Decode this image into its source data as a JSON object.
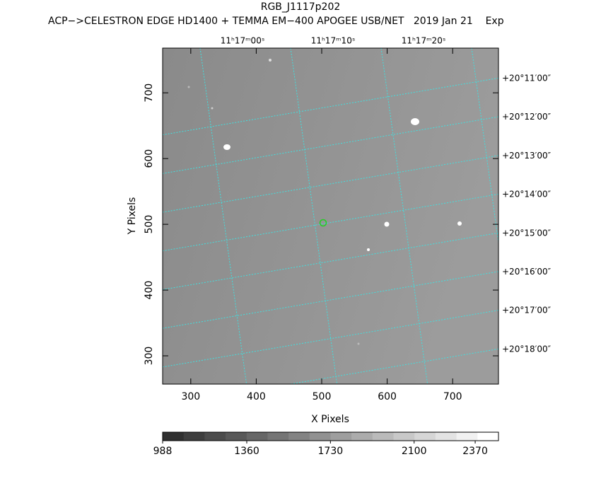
{
  "chart_data": {
    "type": "image",
    "title": "RGB_J1117p202",
    "subtitle": "ACP−>CELESTRON EDGE HD1400 + TEMMA EM−400 APOGEE USB/NET   2019 Jan 21    Exp",
    "xlabel": "X Pixels",
    "ylabel": "Y Pixels",
    "xlim": [
      257,
      770
    ],
    "ylim": [
      257,
      768
    ],
    "xticks": [
      300,
      400,
      500,
      600,
      700
    ],
    "yticks": [
      300,
      400,
      500,
      600,
      700
    ],
    "ra_labels": [
      "11ʰ17ᵐ00ˢ",
      "11ʰ17ᵐ10ˢ",
      "11ʰ17ᵐ20ˢ"
    ],
    "dec_labels": [
      "+20°11′00″",
      "+20°12′00″",
      "+20°13′00″",
      "+20°14′00″",
      "+20°15′00″",
      "+20°16′00″",
      "+20°17′00″",
      "+20°18′00″"
    ],
    "grid_color": "#40e0e0",
    "colorbar": {
      "clim": [
        988,
        2473
      ],
      "ticks": [
        988,
        1360,
        1730,
        2100,
        2370
      ]
    }
  }
}
